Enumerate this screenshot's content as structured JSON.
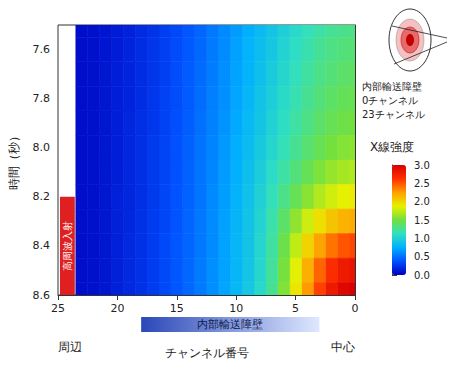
{
  "chart_data": {
    "type": "heatmap",
    "x_label": "チャンネル番号",
    "y_label": "時間（秒）",
    "colorbar_label": "X線強度",
    "x": [
      0,
      1,
      2,
      3,
      4,
      5,
      6,
      7,
      8,
      9,
      10,
      11,
      12,
      13,
      14,
      15,
      16,
      17,
      18,
      19,
      20,
      21,
      22,
      23
    ],
    "y": [
      7.5,
      7.6,
      7.7,
      7.8,
      7.9,
      8.0,
      8.1,
      8.2,
      8.3,
      8.4,
      8.5,
      8.6
    ],
    "cells": [
      [
        1.3,
        1.28,
        1.25,
        1.2,
        1.14,
        1.07,
        0.99,
        0.91,
        0.83,
        0.75,
        0.67,
        0.6,
        0.53,
        0.46,
        0.4,
        0.34,
        0.29,
        0.24,
        0.2,
        0.16,
        0.13,
        0.1,
        0.08,
        0.06
      ],
      [
        1.35,
        1.33,
        1.3,
        1.25,
        1.18,
        1.1,
        1.02,
        0.93,
        0.85,
        0.77,
        0.69,
        0.61,
        0.54,
        0.47,
        0.41,
        0.35,
        0.3,
        0.25,
        0.21,
        0.17,
        0.13,
        0.1,
        0.08,
        0.06
      ],
      [
        1.4,
        1.38,
        1.34,
        1.29,
        1.22,
        1.14,
        1.05,
        0.96,
        0.87,
        0.78,
        0.7,
        0.62,
        0.55,
        0.48,
        0.42,
        0.36,
        0.3,
        0.25,
        0.21,
        0.17,
        0.14,
        0.11,
        0.08,
        0.06
      ],
      [
        1.45,
        1.43,
        1.39,
        1.33,
        1.26,
        1.17,
        1.08,
        0.98,
        0.89,
        0.8,
        0.71,
        0.63,
        0.56,
        0.49,
        0.42,
        0.36,
        0.31,
        0.26,
        0.21,
        0.17,
        0.14,
        0.11,
        0.08,
        0.06
      ],
      [
        1.5,
        1.48,
        1.44,
        1.38,
        1.3,
        1.21,
        1.11,
        1.01,
        0.91,
        0.82,
        0.73,
        0.64,
        0.57,
        0.5,
        0.43,
        0.37,
        0.31,
        0.26,
        0.22,
        0.18,
        0.14,
        0.11,
        0.08,
        0.06
      ],
      [
        1.58,
        1.56,
        1.51,
        1.44,
        1.36,
        1.26,
        1.15,
        1.04,
        0.94,
        0.84,
        0.75,
        0.66,
        0.58,
        0.51,
        0.44,
        0.38,
        0.32,
        0.27,
        0.22,
        0.18,
        0.14,
        0.11,
        0.08,
        0.06
      ],
      [
        1.7,
        1.67,
        1.62,
        1.54,
        1.44,
        1.33,
        1.21,
        1.09,
        0.97,
        0.86,
        0.76,
        0.67,
        0.59,
        0.52,
        0.45,
        0.38,
        0.32,
        0.27,
        0.22,
        0.18,
        0.14,
        0.11,
        0.08,
        0.06
      ],
      [
        1.9,
        1.87,
        1.8,
        1.7,
        1.58,
        1.44,
        1.29,
        1.14,
        1.0,
        0.88,
        0.78,
        0.68,
        0.6,
        0.52,
        0.45,
        0.39,
        0.33,
        0.27,
        0.22,
        0.18,
        0.15,
        0.11,
        0.08,
        0.06
      ],
      [
        2.2,
        2.16,
        2.08,
        1.95,
        1.79,
        1.6,
        1.39,
        1.19,
        1.02,
        0.89,
        0.79,
        0.69,
        0.61,
        0.53,
        0.46,
        0.39,
        0.33,
        0.28,
        0.23,
        0.18,
        0.15,
        0.11,
        0.08,
        0.06
      ],
      [
        2.55,
        2.5,
        2.4,
        2.23,
        2.01,
        1.75,
        1.47,
        1.22,
        1.04,
        0.9,
        0.8,
        0.7,
        0.61,
        0.53,
        0.46,
        0.4,
        0.34,
        0.28,
        0.23,
        0.19,
        0.15,
        0.11,
        0.08,
        0.06
      ],
      [
        2.85,
        2.79,
        2.66,
        2.45,
        2.18,
        1.86,
        1.52,
        1.24,
        1.05,
        0.91,
        0.8,
        0.7,
        0.62,
        0.54,
        0.47,
        0.4,
        0.34,
        0.28,
        0.23,
        0.19,
        0.15,
        0.11,
        0.08,
        0.06
      ],
      [
        3.0,
        2.94,
        2.8,
        2.57,
        2.27,
        1.92,
        1.55,
        1.26,
        1.06,
        0.92,
        0.81,
        0.71,
        0.62,
        0.54,
        0.47,
        0.4,
        0.34,
        0.28,
        0.23,
        0.19,
        0.15,
        0.11,
        0.08,
        0.06
      ]
    ],
    "xlim": [
      0,
      25
    ],
    "xticks": [
      0,
      5,
      10,
      15,
      20,
      25
    ],
    "ylim": [
      7.5,
      8.6
    ],
    "yticks": [
      7.6,
      7.8,
      {
        "value": 8.0,
        "label": "8.0"
      },
      8.2,
      8.4,
      8.6
    ],
    "colorbar": {
      "range": [
        0,
        3
      ],
      "ticks": [
        {
          "value": 0,
          "label": "0.0"
        },
        0.5,
        {
          "value": 1,
          "label": "1.0"
        },
        1.5,
        {
          "value": 2,
          "label": "2.0"
        },
        2.5,
        {
          "value": 3,
          "label": "3.0"
        }
      ]
    },
    "grid": false,
    "annotations": {
      "axis_ends": [
        {
          "text": "中心",
          "x": 0
        },
        {
          "text": "周辺",
          "x": 25
        }
      ],
      "bands": [
        {
          "text": "内部輸送障壁",
          "axis": "x",
          "range": [
            3,
            18
          ]
        },
        {
          "text": "高周波入射",
          "axis": "y",
          "range": [
            8.2,
            8.6
          ]
        }
      ],
      "inset": {
        "labels": [
          "内部輸送障壁",
          "0チャンネル",
          "23チャンネル"
        ]
      }
    }
  }
}
